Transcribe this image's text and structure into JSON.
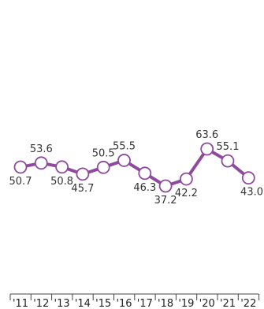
{
  "chart_data": {
    "type": "line",
    "categories": [
      "'11",
      "'12",
      "'13",
      "'14",
      "'15",
      "'16",
      "'17",
      "'18",
      "'19",
      "'20",
      "'21",
      "'22"
    ],
    "series": [
      {
        "values": [
          50.7,
          53.6,
          50.8,
          45.7,
          50.5,
          55.5,
          46.3,
          37.2,
          42.2,
          63.6,
          55.1,
          43.0
        ]
      }
    ],
    "value_labels": [
      "50.7",
      "53.6",
      "50.8",
      "45.7",
      "50.5",
      "55.5",
      "46.3",
      "37.2",
      "42.2",
      "63.6",
      "55.1",
      "43.0"
    ],
    "title": "",
    "xlabel": "",
    "ylabel": "",
    "grid": false,
    "line_color": "#8e4a9c",
    "marker_fill": "#ffffff"
  }
}
